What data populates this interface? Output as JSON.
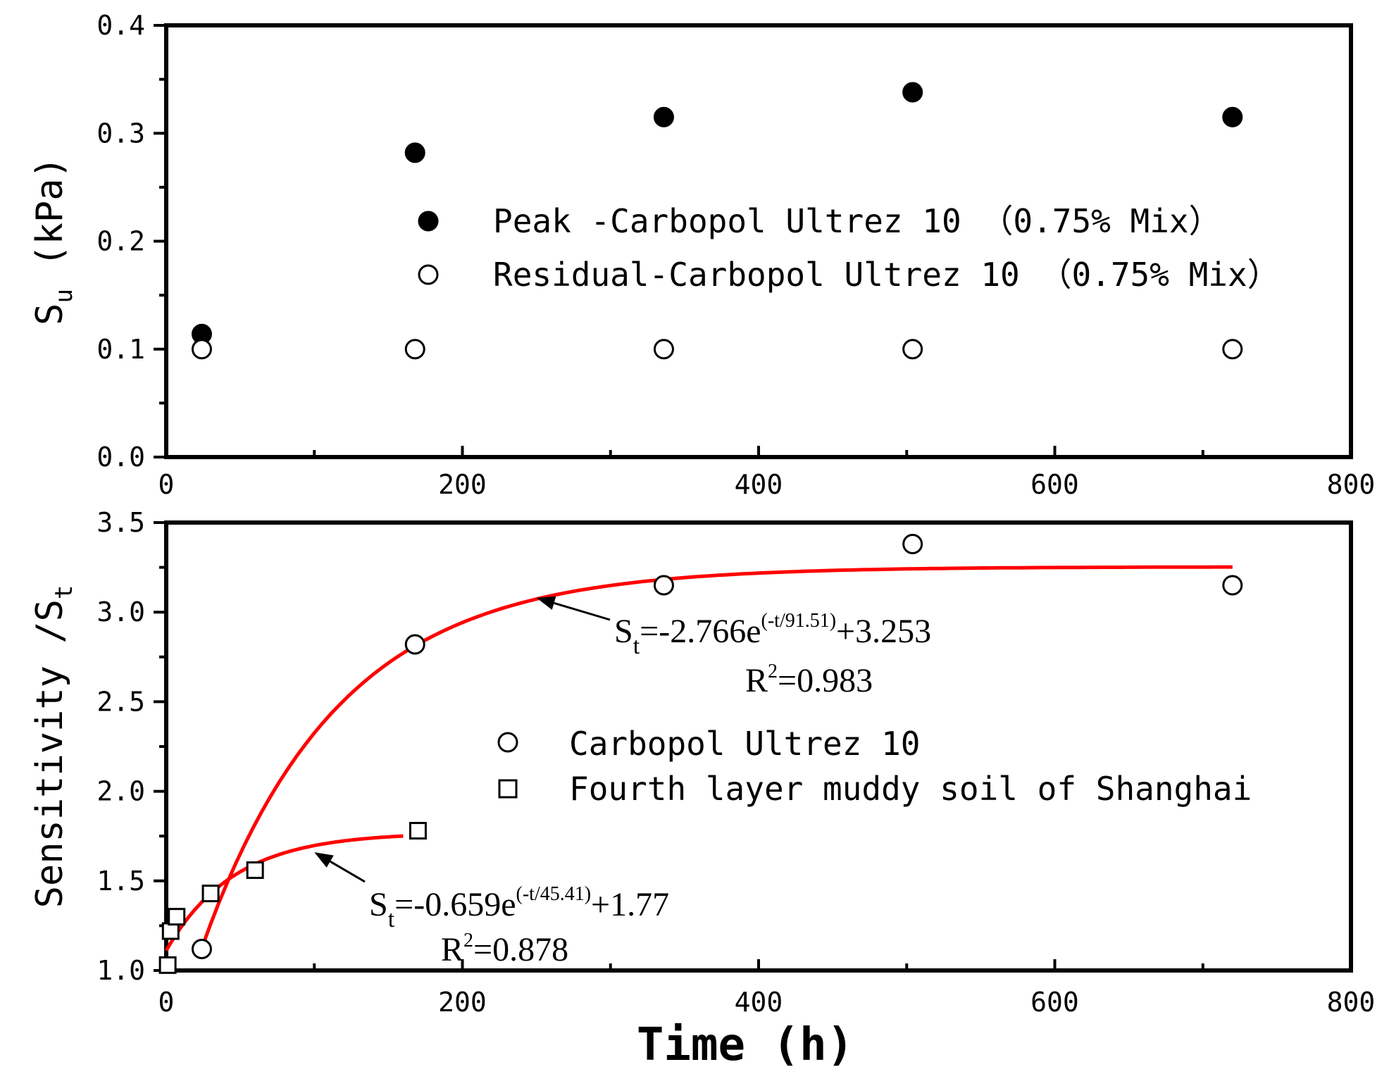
{
  "chart_data": [
    {
      "type": "scatter",
      "xlabel": "",
      "ylabel": "Su (kPa)",
      "ylabel_parts": {
        "main": "S",
        "sub": "u",
        "rest": " (kPa)"
      },
      "xlim": [
        0,
        800
      ],
      "ylim": [
        0,
        0.4
      ],
      "xticks": [
        "0",
        "200",
        "400",
        "600",
        "800"
      ],
      "xticks_val": [
        0,
        200,
        400,
        600,
        800
      ],
      "yticks": [
        "0.0",
        "0.1",
        "0.2",
        "0.3",
        "0.4"
      ],
      "yticks_val": [
        0,
        0.1,
        0.2,
        0.3,
        0.4
      ],
      "legend_position": "center",
      "series": [
        {
          "name": "Peak -Carbopol Ultrez 10 （0.75% Mix）",
          "marker": "filled-circle",
          "x": [
            24,
            168,
            336,
            504,
            720
          ],
          "y": [
            0.114,
            0.282,
            0.315,
            0.338,
            0.315
          ]
        },
        {
          "name": "Residual-Carbopol Ultrez 10 （0.75% Mix）",
          "marker": "open-circle",
          "x": [
            24,
            168,
            336,
            504,
            720
          ],
          "y": [
            0.1,
            0.1,
            0.1,
            0.1,
            0.1
          ]
        }
      ]
    },
    {
      "type": "scatter",
      "xlabel": "Time (h)",
      "ylabel": "Sensitivity /St",
      "ylabel_parts": {
        "main": "Sensitivity /S",
        "sub": "t"
      },
      "xlim": [
        0,
        800
      ],
      "ylim": [
        1.0,
        3.5
      ],
      "xticks": [
        "0",
        "200",
        "400",
        "600",
        "800"
      ],
      "xticks_val": [
        0,
        200,
        400,
        600,
        800
      ],
      "yticks": [
        "1.0",
        "1.5",
        "2.0",
        "2.5",
        "3.0",
        "3.5"
      ],
      "yticks_val": [
        1.0,
        1.5,
        2.0,
        2.5,
        3.0,
        3.5
      ],
      "legend_position": "center-right",
      "series": [
        {
          "name": "Carbopol Ultrez 10",
          "marker": "open-circle",
          "x": [
            24,
            168,
            336,
            504,
            720
          ],
          "y": [
            1.12,
            2.82,
            3.15,
            3.38,
            3.15
          ],
          "fit": {
            "a": -2.766,
            "tau": 91.51,
            "c": 3.253,
            "x_range": [
              24,
              720
            ],
            "color": "#ff0000"
          }
        },
        {
          "name": "Fourth layer muddy soil of Shanghai",
          "marker": "open-square",
          "x": [
            1,
            3,
            7,
            30,
            60,
            170
          ],
          "y": [
            1.03,
            1.22,
            1.3,
            1.43,
            1.56,
            1.78
          ],
          "fit": {
            "a": -0.659,
            "tau": 45.41,
            "c": 1.77,
            "x_range": [
              0,
              160
            ],
            "color": "#ff0000"
          }
        }
      ],
      "annotations": [
        {
          "id": "eq1",
          "S": "S",
          "sub": "t",
          "pre": "=-2.766e",
          "sup": "(-t/91.51)",
          "post": "+3.253",
          "r2_pre": "R",
          "r2_sup": "2",
          "r2_post": "=0.983",
          "arrow_to": [
            250,
            3.08
          ]
        },
        {
          "id": "eq2",
          "S": "S",
          "sub": "t",
          "pre": "=-0.659e",
          "sup": "(-t/45.41)",
          "post": "+1.77",
          "r2_pre": "R",
          "r2_sup": "2",
          "r2_post": "=0.878",
          "arrow_to": [
            100,
            1.66
          ]
        }
      ]
    }
  ]
}
